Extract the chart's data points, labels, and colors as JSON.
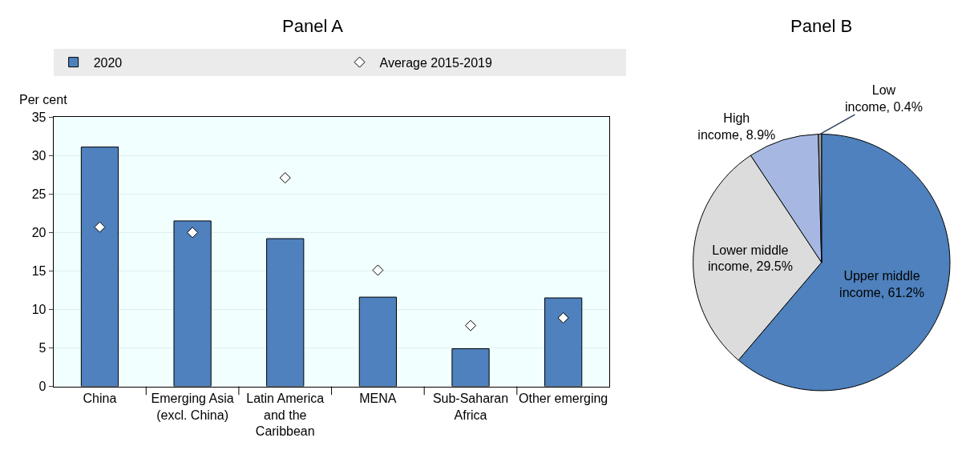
{
  "chart_data": [
    {
      "type": "bar",
      "title": "Panel A",
      "ylabel": "Per cent",
      "categories": [
        "China",
        "Emerging Asia (excl. China)",
        "Latin America and the Caribbean",
        "MENA",
        "Sub-Saharan Africa",
        "Other emerging"
      ],
      "series": [
        {
          "name": "2020",
          "type": "bar",
          "color": "#4e81bd",
          "values": [
            31.1,
            21.5,
            19.2,
            11.6,
            4.9,
            11.5
          ]
        },
        {
          "name": "Average 2015-2019",
          "type": "scatter",
          "marker": "diamond",
          "color": "#ffffff",
          "values": [
            20.7,
            20.0,
            27.1,
            15.1,
            7.9,
            8.9
          ]
        }
      ],
      "ylim": [
        0,
        35
      ],
      "yticks": [
        0,
        5,
        10,
        15,
        20,
        25,
        30,
        35
      ],
      "grid": "y",
      "legend": "top"
    },
    {
      "type": "pie",
      "title": "Panel B",
      "categories": [
        "Upper middle income",
        "Lower middle income",
        "High income",
        "Low income"
      ],
      "values": [
        61.2,
        29.5,
        8.9,
        0.4
      ],
      "value_labels": [
        "61.2%",
        "29.5%",
        "8.9%",
        "0.4%"
      ],
      "colors": [
        "#4e81bd",
        "#dcdcdc",
        "#a6b8e2",
        "#a0a0a0"
      ]
    }
  ]
}
